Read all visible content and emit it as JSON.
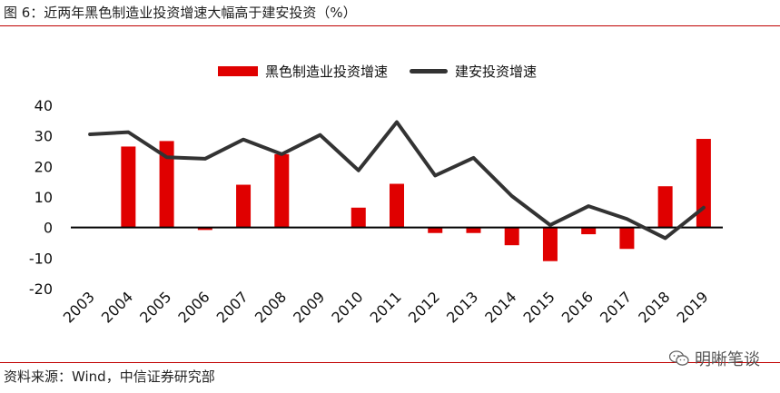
{
  "figure_title": "图 6：近两年黑色制造业投资增速大幅高于建安投资（%）",
  "source_note": "资料来源：Wind，中信证券研究部",
  "watermark_text": "明晰笔谈",
  "colors": {
    "bar": "#e00000",
    "line": "#333333",
    "rule": "#c00000"
  },
  "chart_data": {
    "type": "bar",
    "x": [
      "2003",
      "2004",
      "2005",
      "2006",
      "2007",
      "2008",
      "2009",
      "2010",
      "2011",
      "2012",
      "2013",
      "2014",
      "2015",
      "2016",
      "2017",
      "2018",
      "2019"
    ],
    "series": [
      {
        "name": "黑色制造业投资增速",
        "type": "bar",
        "values": [
          null,
          26.5,
          28.3,
          -0.8,
          14.0,
          24.0,
          null,
          6.5,
          14.3,
          -1.8,
          -1.8,
          -5.8,
          -11.0,
          -2.2,
          -7.0,
          13.5,
          29.0
        ]
      },
      {
        "name": "建安投资增速",
        "type": "line",
        "values": [
          30.5,
          31.2,
          23.0,
          22.5,
          28.8,
          24.0,
          30.3,
          18.7,
          34.5,
          17.0,
          22.8,
          10.3,
          0.8,
          7.0,
          2.8,
          -3.5,
          6.5
        ]
      }
    ],
    "yticks": [
      40,
      30,
      20,
      10,
      0,
      -10,
      -20
    ],
    "ylim": [
      -20,
      40
    ],
    "grid": false,
    "legend": "top-center"
  }
}
